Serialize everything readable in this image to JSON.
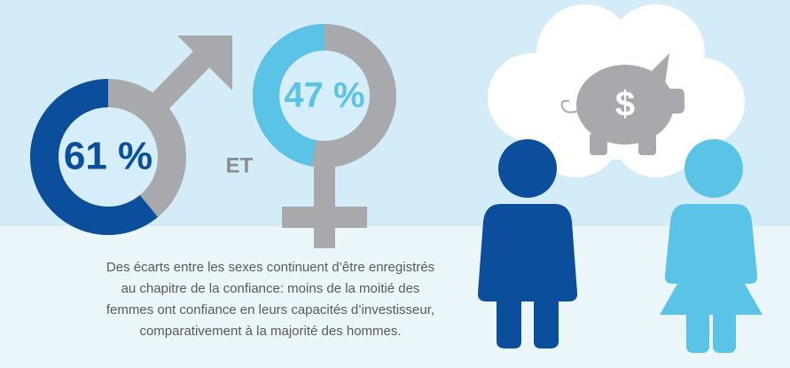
{
  "chart_data": [
    {
      "type": "donut",
      "values": [
        61
      ],
      "value_labels": [
        "61 %"
      ],
      "color": "#0b4f9c",
      "label_color": "#0b4f9c"
    },
    {
      "type": "donut",
      "values": [
        47
      ],
      "value_labels": [
        "47 %"
      ],
      "color": "#5bc4e6",
      "label_color": "#5bc4e6"
    }
  ],
  "connector": "ET",
  "icon_label": "$",
  "caption": [
    "Des écarts entre les sexes continuent d’être enregistrés",
    "au chapitre de la confiance: moins de la moitié des",
    "femmes ont confiance en leurs capacités d’investisseur,",
    "comparativement à la majorité des hommes."
  ]
}
